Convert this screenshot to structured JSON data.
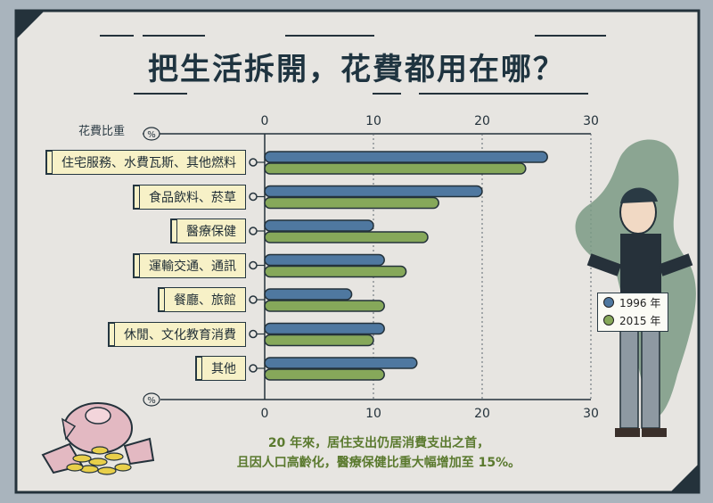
{
  "title": "把生活拆開，花費都用在哪？",
  "footnote": {
    "line1": "20 年來，居住支出仍居消費支出之首，",
    "line2": "且因人口高齡化，醫療保健比重大幅增加至 15%。"
  },
  "colors": {
    "series_1996": "#4f78a0",
    "series_2015": "#86a85a",
    "background": "#a9b4bd",
    "panel": "#e7e5e1",
    "dark": "#1f3440"
  },
  "chart_data": {
    "type": "bar",
    "orientation": "horizontal",
    "unit_label": "花費比重",
    "unit_symbol": "%",
    "xlim": [
      0,
      30
    ],
    "ticks": [
      0,
      10,
      20,
      30
    ],
    "grid": true,
    "categories": [
      "住宅服務、水費瓦斯、其他燃料",
      "食品飲料、菸草",
      "醫療保健",
      "運輸交通、通訊",
      "餐廳、旅館",
      "休閒、文化教育消費",
      "其他"
    ],
    "series": [
      {
        "name": "1996 年",
        "values": [
          26,
          20,
          10,
          11,
          8,
          11,
          14
        ]
      },
      {
        "name": "2015 年",
        "values": [
          24,
          16,
          15,
          13,
          11,
          10,
          11
        ]
      }
    ],
    "legend_position": "right"
  }
}
